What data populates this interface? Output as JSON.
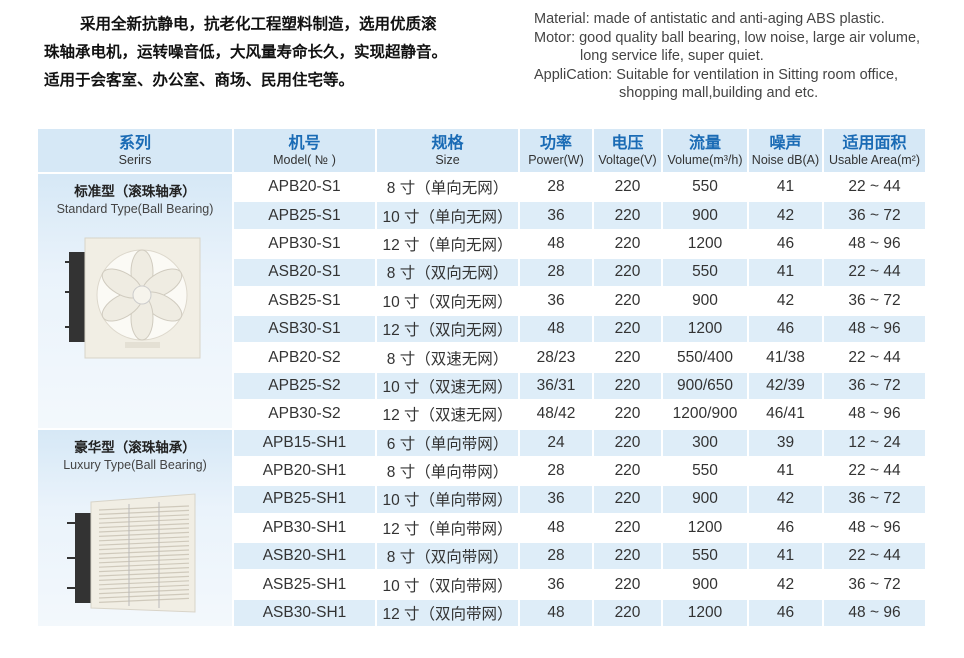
{
  "intro_cn": [
    "采用全新抗静电，抗老化工程塑料制造，选用优质滚",
    "珠轴承电机，运转噪音低，大风量寿命长久，实现超静音。",
    "适用于会客室、办公室、商场、民用住宅等。"
  ],
  "intro_en": [
    "Material: made of antistatic and anti-aging ABS plastic.",
    "Motor: good quality ball bearing, low noise, large air volume,",
    "long service life, super quiet.",
    "AppliCation: Suitable for ventilation in Sitting room office,",
    "shopping mall,building and etc."
  ],
  "headers": [
    {
      "cn": "系列",
      "en": "Serirs"
    },
    {
      "cn": "机号",
      "en": "Model( № )"
    },
    {
      "cn": "规格",
      "en": "Size"
    },
    {
      "cn": "功率",
      "en": "Power(W)"
    },
    {
      "cn": "电压",
      "en": "Voltage(V)"
    },
    {
      "cn": "流量",
      "en": "Volume(m³/h)"
    },
    {
      "cn": "噪声",
      "en": "Noise dB(A)"
    },
    {
      "cn": "适用面积",
      "en": "Usable Area(m²)"
    }
  ],
  "series": [
    {
      "cn": "标准型（滚珠轴承）",
      "en": "Standard Type(Ball Bearing)",
      "image": "exhaust-fan-standard"
    },
    {
      "cn": "豪华型（滚珠轴承）",
      "en": "Luxury Type(Ball Bearing)",
      "image": "exhaust-fan-luxury"
    }
  ],
  "rows": [
    [
      "APB20-S1",
      "8 寸（单向无网）",
      "28",
      "220",
      "550",
      "41",
      "22 ~ 44"
    ],
    [
      "APB25-S1",
      "10 寸（单向无网）",
      "36",
      "220",
      "900",
      "42",
      "36 ~ 72"
    ],
    [
      "APB30-S1",
      "12 寸（单向无网）",
      "48",
      "220",
      "1200",
      "46",
      "48 ~ 96"
    ],
    [
      "ASB20-S1",
      "8 寸（双向无网）",
      "28",
      "220",
      "550",
      "41",
      "22 ~ 44"
    ],
    [
      "ASB25-S1",
      "10 寸（双向无网）",
      "36",
      "220",
      "900",
      "42",
      "36 ~ 72"
    ],
    [
      "ASB30-S1",
      "12 寸（双向无网）",
      "48",
      "220",
      "1200",
      "46",
      "48 ~ 96"
    ],
    [
      "APB20-S2",
      "8 寸（双速无网）",
      "28/23",
      "220",
      "550/400",
      "41/38",
      "22 ~ 44"
    ],
    [
      "APB25-S2",
      "10 寸（双速无网）",
      "36/31",
      "220",
      "900/650",
      "42/39",
      "36 ~ 72"
    ],
    [
      "APB30-S2",
      "12 寸（双速无网）",
      "48/42",
      "220",
      "1200/900",
      "46/41",
      "48 ~ 96"
    ],
    [
      "APB15-SH1",
      "6 寸（单向带网）",
      "24",
      "220",
      "300",
      "39",
      "12 ~ 24"
    ],
    [
      "APB20-SH1",
      "8 寸（单向带网）",
      "28",
      "220",
      "550",
      "41",
      "22 ~ 44"
    ],
    [
      "APB25-SH1",
      "10 寸（单向带网）",
      "36",
      "220",
      "900",
      "42",
      "36 ~ 72"
    ],
    [
      "APB30-SH1",
      "12 寸（单向带网）",
      "48",
      "220",
      "1200",
      "46",
      "48 ~ 96"
    ],
    [
      "ASB20-SH1",
      "8 寸（双向带网）",
      "28",
      "220",
      "550",
      "41",
      "22 ~ 44"
    ],
    [
      "ASB25-SH1",
      "10 寸（双向带网）",
      "36",
      "220",
      "900",
      "42",
      "36 ~ 72"
    ],
    [
      "ASB30-SH1",
      "12 寸（双向带网）",
      "48",
      "220",
      "1200",
      "46",
      "48 ~ 96"
    ]
  ],
  "colors": {
    "header_bg": "#d6e8f6",
    "header_text": "#1a6bb5",
    "alt_row": "#deedf8"
  }
}
